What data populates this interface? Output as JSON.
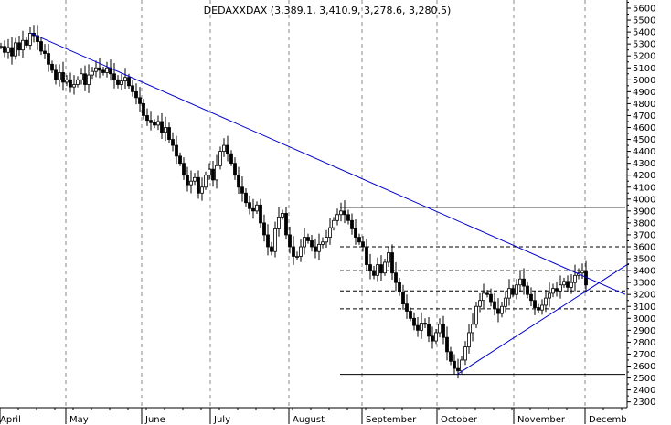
{
  "chart_data": {
    "type": "candlestick",
    "title": "DEDAXXDAX (3,389.1, 3,410.9, 3,278.6, 3,280.5)",
    "xlabel": "",
    "ylabel": "",
    "ylim": [
      2200,
      5650
    ],
    "y_ticks": [
      2300,
      2400,
      2500,
      2600,
      2700,
      2800,
      2900,
      3000,
      3100,
      3200,
      3300,
      3400,
      3500,
      3600,
      3700,
      3800,
      3900,
      4000,
      4100,
      4200,
      4300,
      4400,
      4500,
      4600,
      4700,
      4800,
      4900,
      5000,
      5100,
      5200,
      5300,
      5400,
      5500,
      5600
    ],
    "month_labels": [
      "April",
      "May",
      "June",
      "July",
      "August",
      "September",
      "October",
      "November",
      "Decemb"
    ],
    "grid": "vertical dashed month separators",
    "line_color": "#0000cc",
    "price_path": [
      [
        0,
        5280
      ],
      [
        4,
        5230
      ],
      [
        8,
        5270
      ],
      [
        12,
        5200
      ],
      [
        16,
        5310
      ],
      [
        20,
        5250
      ],
      [
        24,
        5330
      ],
      [
        28,
        5290
      ],
      [
        32,
        5390
      ],
      [
        36,
        5370
      ],
      [
        40,
        5320
      ],
      [
        44,
        5240
      ],
      [
        48,
        5220
      ],
      [
        52,
        5130
      ],
      [
        56,
        5080
      ],
      [
        60,
        5000
      ],
      [
        64,
        5060
      ],
      [
        68,
        4980
      ],
      [
        72,
        5000
      ],
      [
        76,
        4940
      ],
      [
        80,
        4960
      ],
      [
        84,
        5000
      ],
      [
        88,
        5050
      ],
      [
        92,
        4960
      ],
      [
        96,
        5040
      ],
      [
        100,
        5070
      ],
      [
        104,
        5100
      ],
      [
        108,
        5080
      ],
      [
        112,
        5060
      ],
      [
        116,
        5100
      ],
      [
        120,
        5050
      ],
      [
        124,
        5000
      ],
      [
        128,
        4960
      ],
      [
        132,
        4990
      ],
      [
        136,
        5020
      ],
      [
        140,
        4950
      ],
      [
        144,
        4900
      ],
      [
        148,
        4850
      ],
      [
        152,
        4800
      ],
      [
        156,
        4700
      ],
      [
        160,
        4660
      ],
      [
        164,
        4640
      ],
      [
        168,
        4620
      ],
      [
        172,
        4650
      ],
      [
        176,
        4560
      ],
      [
        180,
        4600
      ],
      [
        184,
        4500
      ],
      [
        188,
        4450
      ],
      [
        192,
        4360
      ],
      [
        196,
        4300
      ],
      [
        200,
        4200
      ],
      [
        204,
        4120
      ],
      [
        208,
        4150
      ],
      [
        212,
        4180
      ],
      [
        216,
        4050
      ],
      [
        220,
        4100
      ],
      [
        224,
        4200
      ],
      [
        228,
        4250
      ],
      [
        232,
        4160
      ],
      [
        236,
        4280
      ],
      [
        240,
        4400
      ],
      [
        244,
        4450
      ],
      [
        248,
        4380
      ],
      [
        252,
        4300
      ],
      [
        256,
        4200
      ],
      [
        260,
        4100
      ],
      [
        264,
        4050
      ],
      [
        268,
        3970
      ],
      [
        272,
        3920
      ],
      [
        276,
        3900
      ],
      [
        280,
        3950
      ],
      [
        284,
        3800
      ],
      [
        288,
        3700
      ],
      [
        292,
        3600
      ],
      [
        296,
        3560
      ],
      [
        300,
        3750
      ],
      [
        304,
        3850
      ],
      [
        308,
        3880
      ],
      [
        312,
        3700
      ],
      [
        316,
        3600
      ],
      [
        320,
        3520
      ],
      [
        324,
        3520
      ],
      [
        328,
        3600
      ],
      [
        332,
        3680
      ],
      [
        336,
        3650
      ],
      [
        340,
        3600
      ],
      [
        344,
        3560
      ],
      [
        348,
        3620
      ],
      [
        352,
        3640
      ],
      [
        356,
        3680
      ],
      [
        360,
        3760
      ],
      [
        364,
        3820
      ],
      [
        368,
        3870
      ],
      [
        372,
        3900
      ],
      [
        376,
        3870
      ],
      [
        380,
        3820
      ],
      [
        384,
        3750
      ],
      [
        388,
        3680
      ],
      [
        392,
        3640
      ],
      [
        396,
        3600
      ],
      [
        400,
        3450
      ],
      [
        404,
        3400
      ],
      [
        408,
        3360
      ],
      [
        412,
        3450
      ],
      [
        416,
        3380
      ],
      [
        420,
        3470
      ],
      [
        424,
        3550
      ],
      [
        428,
        3380
      ],
      [
        432,
        3300
      ],
      [
        436,
        3220
      ],
      [
        440,
        3120
      ],
      [
        444,
        3060
      ],
      [
        448,
        3000
      ],
      [
        452,
        2940
      ],
      [
        456,
        2900
      ],
      [
        460,
        2960
      ],
      [
        464,
        2950
      ],
      [
        468,
        2850
      ],
      [
        472,
        2810
      ],
      [
        476,
        2880
      ],
      [
        480,
        2950
      ],
      [
        484,
        2840
      ],
      [
        488,
        2720
      ],
      [
        492,
        2640
      ],
      [
        496,
        2580
      ],
      [
        500,
        2560
      ],
      [
        504,
        2650
      ],
      [
        508,
        2760
      ],
      [
        512,
        2880
      ],
      [
        516,
        2950
      ],
      [
        520,
        3100
      ],
      [
        524,
        3150
      ],
      [
        528,
        3210
      ],
      [
        532,
        3200
      ],
      [
        536,
        3140
      ],
      [
        540,
        3080
      ],
      [
        544,
        3040
      ],
      [
        548,
        3100
      ],
      [
        552,
        3170
      ],
      [
        556,
        3250
      ],
      [
        560,
        3200
      ],
      [
        564,
        3280
      ],
      [
        568,
        3330
      ],
      [
        572,
        3270
      ],
      [
        576,
        3200
      ],
      [
        580,
        3150
      ],
      [
        584,
        3090
      ],
      [
        588,
        3070
      ],
      [
        592,
        3110
      ],
      [
        596,
        3170
      ],
      [
        600,
        3210
      ],
      [
        604,
        3250
      ],
      [
        608,
        3230
      ],
      [
        612,
        3280
      ],
      [
        616,
        3310
      ],
      [
        620,
        3260
      ],
      [
        624,
        3300
      ],
      [
        628,
        3360
      ],
      [
        632,
        3380
      ],
      [
        636,
        3400
      ],
      [
        640,
        3280
      ]
    ],
    "trendlines": [
      {
        "from": [
          34,
          5390
        ],
        "to": [
          684,
          3200
        ]
      },
      {
        "from": [
          500,
          2530
        ],
        "to": [
          688,
          3460
        ]
      }
    ],
    "levels_solid": [
      {
        "y": 3930,
        "x1": 372,
        "x2": 684
      },
      {
        "y": 2530,
        "x1": 372,
        "x2": 684
      }
    ],
    "levels_dashed": [
      {
        "y": 3600,
        "x1": 372,
        "x2": 684
      },
      {
        "y": 3400,
        "x1": 372,
        "x2": 684
      },
      {
        "y": 3230,
        "x1": 372,
        "x2": 684
      },
      {
        "y": 3080,
        "x1": 372,
        "x2": 684
      }
    ]
  }
}
